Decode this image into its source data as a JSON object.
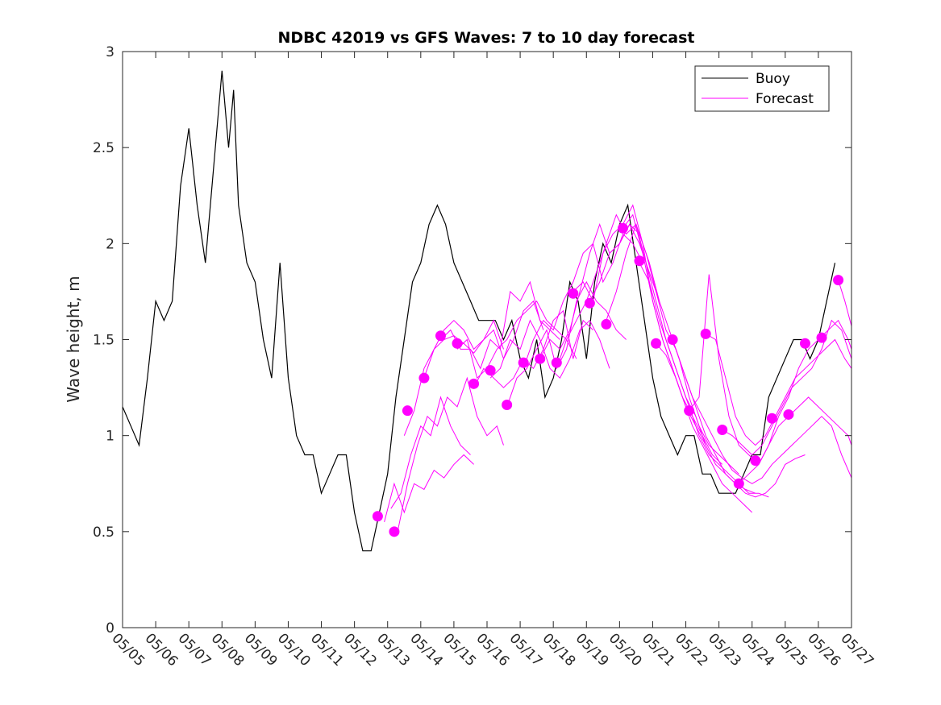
{
  "chart_data": {
    "type": "line",
    "title": "NDBC 42019 vs GFS Waves: 7 to 10 day forecast",
    "xlabel": "",
    "ylabel": "Wave height, m",
    "xlim_days": [
      5,
      27
    ],
    "ylim": [
      0,
      3
    ],
    "yticks": [
      0,
      0.5,
      1,
      1.5,
      2,
      2.5,
      3
    ],
    "ytick_labels": [
      "0",
      "0.5",
      "1",
      "1.5",
      "2",
      "2.5",
      "3"
    ],
    "xticks": [
      "05/05",
      "05/06",
      "05/07",
      "05/08",
      "05/09",
      "05/10",
      "05/11",
      "05/12",
      "05/13",
      "05/14",
      "05/15",
      "05/16",
      "05/17",
      "05/18",
      "05/19",
      "05/20",
      "05/21",
      "05/22",
      "05/23",
      "05/24",
      "05/25",
      "05/26",
      "05/27"
    ],
    "grid": false,
    "legend": {
      "placement": "top-right",
      "entries": [
        {
          "label": "Buoy",
          "color": "#000000"
        },
        {
          "label": "Forecast",
          "color": "#ff00ff"
        }
      ]
    },
    "colors": {
      "buoy": "#000000",
      "forecast": "#ff00ff"
    },
    "series": [
      {
        "name": "Buoy",
        "x_day": [
          5.0,
          5.25,
          5.5,
          5.75,
          6.0,
          6.25,
          6.5,
          6.75,
          7.0,
          7.25,
          7.5,
          7.75,
          8.0,
          8.2,
          8.35,
          8.5,
          8.75,
          9.0,
          9.25,
          9.5,
          9.75,
          10.0,
          10.25,
          10.5,
          10.75,
          11.0,
          11.25,
          11.5,
          11.75,
          12.0,
          12.25,
          12.5,
          12.75,
          13.0,
          13.25,
          13.5,
          13.75,
          14.0,
          14.25,
          14.5,
          14.75,
          15.0,
          15.25,
          15.5,
          15.75,
          16.0,
          16.25,
          16.5,
          16.75,
          17.0,
          17.25,
          17.5,
          17.75,
          18.0,
          18.25,
          18.5,
          18.75,
          19.0,
          19.25,
          19.5,
          19.75,
          20.0,
          20.25,
          20.5,
          20.75,
          21.0,
          21.25,
          21.5,
          21.75,
          22.0,
          22.25,
          22.5,
          22.75,
          23.0,
          23.25,
          23.5,
          23.75,
          24.0,
          24.25,
          24.5,
          24.75,
          25.0,
          25.25,
          25.5,
          25.75,
          26.0,
          26.25,
          26.5
        ],
        "y": [
          1.15,
          1.05,
          0.95,
          1.3,
          1.7,
          1.6,
          1.7,
          2.3,
          2.6,
          2.2,
          1.9,
          2.4,
          2.9,
          2.5,
          2.8,
          2.2,
          1.9,
          1.8,
          1.5,
          1.3,
          1.9,
          1.3,
          1.0,
          0.9,
          0.9,
          0.7,
          0.8,
          0.9,
          0.9,
          0.6,
          0.4,
          0.4,
          0.6,
          0.8,
          1.2,
          1.5,
          1.8,
          1.9,
          2.1,
          2.2,
          2.1,
          1.9,
          1.8,
          1.7,
          1.6,
          1.6,
          1.6,
          1.5,
          1.6,
          1.4,
          1.3,
          1.5,
          1.2,
          1.3,
          1.5,
          1.8,
          1.7,
          1.4,
          1.8,
          2.0,
          1.9,
          2.1,
          2.2,
          1.9,
          1.6,
          1.3,
          1.1,
          1.0,
          0.9,
          1.0,
          1.0,
          0.8,
          0.8,
          0.7,
          0.7,
          0.7,
          0.8,
          0.9,
          0.9,
          1.2,
          1.3,
          1.4,
          1.5,
          1.5,
          1.4,
          1.5,
          1.7,
          1.9
        ]
      },
      {
        "name": "Forecast",
        "x_day": [
          12.9,
          13.2,
          13.5,
          13.8,
          14.1,
          14.4,
          14.7,
          15.0,
          15.3,
          15.6
        ],
        "y": [
          0.55,
          0.75,
          0.6,
          0.75,
          0.72,
          0.82,
          0.78,
          0.85,
          0.9,
          0.85
        ]
      },
      {
        "name": "Forecast",
        "x_day": [
          13.1,
          13.4,
          13.7,
          14.0,
          14.3,
          14.6,
          14.9,
          15.2,
          15.5
        ],
        "y": [
          0.62,
          0.7,
          0.9,
          1.05,
          1.0,
          1.2,
          1.05,
          0.95,
          0.9
        ]
      },
      {
        "name": "Forecast",
        "x_day": [
          13.3,
          13.6,
          13.9,
          14.2,
          14.5,
          14.8,
          15.1,
          15.4,
          15.7,
          16.0,
          16.3,
          16.5
        ],
        "y": [
          0.5,
          0.75,
          0.95,
          1.1,
          1.05,
          1.2,
          1.15,
          1.3,
          1.1,
          1.0,
          1.05,
          0.95
        ]
      },
      {
        "name": "Forecast",
        "x_day": [
          13.5,
          13.8,
          14.1,
          14.4,
          14.7,
          15.0,
          15.3,
          15.6,
          15.9,
          16.2,
          16.5
        ],
        "y": [
          1.0,
          1.13,
          1.35,
          1.45,
          1.55,
          1.6,
          1.55,
          1.45,
          1.5,
          1.6,
          1.45
        ]
      },
      {
        "name": "Forecast",
        "x_day": [
          14.1,
          14.4,
          14.7,
          15.0,
          15.3,
          15.6,
          15.9,
          16.2,
          16.5,
          16.8,
          17.1,
          17.4,
          17.7
        ],
        "y": [
          1.3,
          1.45,
          1.5,
          1.52,
          1.48,
          1.43,
          1.5,
          1.55,
          1.4,
          1.5,
          1.65,
          1.7,
          1.55
        ]
      },
      {
        "name": "Forecast",
        "x_day": [
          14.6,
          14.9,
          15.2,
          15.5,
          15.8,
          16.1,
          16.4,
          16.7,
          17.0,
          17.3,
          17.6,
          17.9,
          18.2
        ],
        "y": [
          1.5,
          1.55,
          1.45,
          1.45,
          1.35,
          1.5,
          1.45,
          1.75,
          1.7,
          1.8,
          1.6,
          1.55,
          1.5
        ]
      },
      {
        "name": "Forecast",
        "x_day": [
          15.1,
          15.4,
          15.7,
          16.0,
          16.3,
          16.6,
          16.9,
          17.2,
          17.5,
          17.8,
          18.1,
          18.4,
          18.7
        ],
        "y": [
          1.45,
          1.5,
          1.3,
          1.35,
          1.45,
          1.5,
          1.6,
          1.65,
          1.7,
          1.6,
          1.55,
          1.5,
          1.4
        ]
      },
      {
        "name": "Forecast",
        "x_day": [
          15.6,
          15.9,
          16.2,
          16.5,
          16.8,
          17.1,
          17.4,
          17.7,
          18.0,
          18.3,
          18.6,
          18.9,
          19.2
        ],
        "y": [
          1.25,
          1.35,
          1.3,
          1.25,
          1.3,
          1.4,
          1.35,
          1.45,
          1.6,
          1.65,
          1.4,
          1.6,
          1.55
        ]
      },
      {
        "name": "Forecast",
        "x_day": [
          16.1,
          16.4,
          16.7,
          17.0,
          17.3,
          17.6,
          17.9,
          18.2,
          18.5,
          18.8,
          19.1,
          19.4,
          19.7
        ],
        "y": [
          1.3,
          1.35,
          1.5,
          1.45,
          1.6,
          1.5,
          1.35,
          1.3,
          1.4,
          1.55,
          1.6,
          1.5,
          1.35
        ]
      },
      {
        "name": "Forecast",
        "x_day": [
          16.6,
          16.9,
          17.2,
          17.5,
          17.8,
          18.1,
          18.4,
          18.7,
          19.0,
          19.3,
          19.6,
          19.9,
          20.2
        ],
        "y": [
          1.15,
          1.3,
          1.35,
          1.45,
          1.55,
          1.35,
          1.45,
          1.7,
          1.8,
          1.7,
          1.65,
          1.55,
          1.5
        ]
      },
      {
        "name": "Forecast",
        "x_day": [
          17.1,
          17.4,
          17.7,
          18.0,
          18.3,
          18.6,
          18.9,
          19.2,
          19.5,
          19.8,
          20.1,
          20.4,
          20.7
        ],
        "y": [
          1.35,
          1.5,
          1.6,
          1.55,
          1.7,
          1.8,
          1.95,
          2.0,
          1.8,
          1.9,
          2.05,
          2.0,
          1.9
        ]
      },
      {
        "name": "Forecast",
        "x_day": [
          17.6,
          17.9,
          18.2,
          18.5,
          18.8,
          19.1,
          19.4,
          19.7,
          20.0,
          20.3,
          20.6,
          20.9,
          21.2
        ],
        "y": [
          1.4,
          1.5,
          1.45,
          1.55,
          1.75,
          1.95,
          2.1,
          1.95,
          2.0,
          2.1,
          2.0,
          1.85,
          1.7
        ]
      },
      {
        "name": "Forecast",
        "x_day": [
          18.1,
          18.4,
          18.7,
          19.0,
          19.3,
          19.6,
          19.9,
          20.2,
          20.5,
          20.8,
          21.1,
          21.4,
          21.7,
          22.0,
          22.3,
          22.6
        ],
        "y": [
          1.35,
          1.5,
          1.6,
          1.7,
          1.85,
          2.0,
          2.15,
          2.05,
          2.1,
          1.9,
          1.7,
          1.5,
          1.35,
          1.2,
          1.1,
          0.95
        ]
      },
      {
        "name": "Forecast",
        "x_day": [
          18.6,
          18.9,
          19.2,
          19.5,
          19.8,
          20.1,
          20.4,
          20.7,
          21.0,
          21.3,
          21.6,
          21.9,
          22.2,
          22.5,
          22.8,
          23.1
        ],
        "y": [
          1.75,
          1.8,
          1.7,
          1.95,
          2.05,
          2.1,
          2.2,
          2.0,
          1.7,
          1.5,
          1.35,
          1.2,
          1.1,
          1.0,
          0.9,
          0.85
        ]
      },
      {
        "name": "Forecast",
        "x_day": [
          19.1,
          19.4,
          19.7,
          20.0,
          20.3,
          20.6,
          20.9,
          21.2,
          21.5,
          21.8,
          22.1,
          22.4,
          22.7,
          23.0,
          23.3,
          23.6
        ],
        "y": [
          1.7,
          1.8,
          1.95,
          2.0,
          2.1,
          2.05,
          1.9,
          1.7,
          1.55,
          1.4,
          1.2,
          1.05,
          0.95,
          0.9,
          0.85,
          0.8
        ]
      },
      {
        "name": "Forecast",
        "x_day": [
          19.6,
          19.9,
          20.2,
          20.5,
          20.8,
          21.1,
          21.4,
          21.7,
          22.0,
          22.3,
          22.6,
          22.9,
          23.2,
          23.5,
          23.8,
          24.1
        ],
        "y": [
          1.6,
          1.75,
          1.95,
          2.1,
          1.95,
          1.75,
          1.55,
          1.45,
          1.3,
          1.15,
          1.0,
          0.9,
          0.8,
          0.75,
          0.72,
          0.7
        ]
      },
      {
        "name": "Forecast",
        "x_day": [
          20.1,
          20.4,
          20.7,
          21.0,
          21.3,
          21.6,
          21.9,
          22.2,
          22.5,
          22.8,
          23.1,
          23.4,
          23.7,
          24.0
        ],
        "y": [
          2.08,
          2.15,
          1.95,
          1.7,
          1.5,
          1.35,
          1.2,
          1.05,
          0.95,
          0.85,
          0.75,
          0.7,
          0.65,
          0.6
        ]
      },
      {
        "name": "Forecast",
        "x_day": [
          20.6,
          20.9,
          21.2,
          21.5,
          21.8,
          22.1,
          22.4,
          22.7,
          23.0,
          23.3,
          23.6,
          23.9,
          24.2,
          24.5
        ],
        "y": [
          1.9,
          1.8,
          1.6,
          1.45,
          1.3,
          1.15,
          1.0,
          0.9,
          0.85,
          0.8,
          0.75,
          0.7,
          0.7,
          0.68
        ]
      },
      {
        "name": "Forecast",
        "x_day": [
          21.1,
          21.4,
          21.7,
          22.0,
          22.3,
          22.6,
          22.9,
          23.2,
          23.5,
          23.8,
          24.1,
          24.4,
          24.7,
          25.0,
          25.3,
          25.6
        ],
        "y": [
          1.48,
          1.42,
          1.3,
          1.15,
          1.05,
          0.95,
          0.85,
          0.8,
          0.75,
          0.7,
          0.68,
          0.7,
          0.75,
          0.85,
          0.88,
          0.9
        ]
      },
      {
        "name": "Forecast",
        "x_day": [
          21.6,
          21.9,
          22.2,
          22.5,
          22.8,
          23.1,
          23.4,
          23.7,
          24.0,
          24.3,
          24.6,
          24.9,
          25.2,
          25.5,
          25.8,
          26.1,
          26.4,
          26.7,
          27.0
        ],
        "y": [
          1.5,
          1.35,
          1.2,
          1.1,
          1.0,
          0.9,
          0.82,
          0.78,
          0.75,
          0.78,
          0.85,
          0.9,
          0.95,
          1.0,
          1.05,
          1.1,
          1.05,
          0.9,
          0.78
        ]
      },
      {
        "name": "Forecast",
        "x_day": [
          22.1,
          22.4,
          22.7,
          23.0,
          23.3,
          23.6,
          23.9,
          24.2,
          24.5,
          24.8,
          25.1,
          25.4,
          25.7,
          26.0,
          26.3,
          26.6,
          26.9,
          27.0
        ],
        "y": [
          1.13,
          1.2,
          1.84,
          1.4,
          1.1,
          0.95,
          0.9,
          0.85,
          0.95,
          1.05,
          1.1,
          1.15,
          1.2,
          1.15,
          1.1,
          1.05,
          1.0,
          0.95
        ]
      },
      {
        "name": "Forecast",
        "x_day": [
          22.6,
          22.9,
          23.2,
          23.5,
          23.8,
          24.1,
          24.4,
          24.7,
          25.0,
          25.3,
          25.6,
          25.9,
          26.2,
          26.5,
          26.8,
          27.0
        ],
        "y": [
          1.53,
          1.5,
          1.3,
          1.1,
          1.0,
          0.95,
          1.0,
          1.1,
          1.2,
          1.3,
          1.35,
          1.4,
          1.45,
          1.5,
          1.4,
          1.35
        ]
      },
      {
        "name": "Forecast",
        "x_day": [
          23.1,
          23.4,
          23.7,
          24.0,
          24.3,
          24.6,
          24.9,
          25.2,
          25.5,
          25.8,
          26.1,
          26.4,
          26.7,
          27.0
        ],
        "y": [
          1.03,
          1.0,
          0.95,
          0.9,
          0.95,
          1.05,
          1.15,
          1.25,
          1.3,
          1.35,
          1.45,
          1.6,
          1.55,
          1.4
        ]
      },
      {
        "name": "Forecast",
        "x_day": [
          23.6,
          23.9,
          24.2,
          24.5,
          24.8,
          25.1,
          25.4,
          25.7,
          26.0,
          26.3,
          26.6,
          26.9,
          27.0
        ],
        "y": [
          0.75,
          0.8,
          0.85,
          0.95,
          1.1,
          1.2,
          1.35,
          1.45,
          1.5,
          1.55,
          1.6,
          1.5,
          1.45
        ]
      },
      {
        "name": "Forecast",
        "x_day": [
          26.6,
          26.8,
          27.0
        ],
        "y": [
          1.81,
          1.7,
          1.57
        ]
      }
    ],
    "forecast_markers": {
      "x_day": [
        12.7,
        13.2,
        13.6,
        14.1,
        14.6,
        15.1,
        15.6,
        16.1,
        16.6,
        17.1,
        17.6,
        18.1,
        18.6,
        19.1,
        19.6,
        20.1,
        20.6,
        21.1,
        21.6,
        22.1,
        22.6,
        23.1,
        23.6,
        24.1,
        24.6,
        25.1,
        25.6,
        26.1,
        26.6
      ],
      "y": [
        0.58,
        0.5,
        1.13,
        1.3,
        1.52,
        1.48,
        1.27,
        1.34,
        1.16,
        1.38,
        1.4,
        1.38,
        1.74,
        1.69,
        1.58,
        2.08,
        1.91,
        1.48,
        1.5,
        1.13,
        1.53,
        1.03,
        0.75,
        0.87,
        1.09,
        1.11,
        1.48,
        1.51,
        1.81
      ]
    }
  }
}
